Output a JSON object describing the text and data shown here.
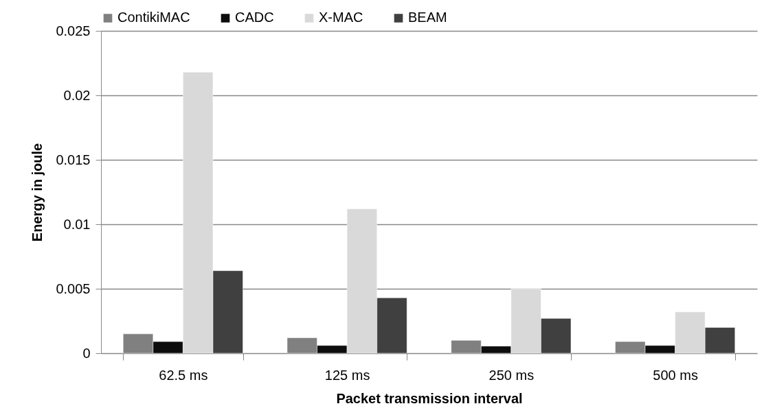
{
  "chart_data": {
    "type": "bar",
    "xlabel": "Packet transmission interval",
    "ylabel": "Energy in joule",
    "categories": [
      "62.5 ms",
      "125 ms",
      "250 ms",
      "500 ms"
    ],
    "series": [
      {
        "name": "ContikiMAC",
        "color": "#808080",
        "values": [
          0.0015,
          0.0012,
          0.001,
          0.0009
        ]
      },
      {
        "name": "CADC",
        "color": "#0d0d0d",
        "values": [
          0.0009,
          0.0006,
          0.00055,
          0.0006
        ]
      },
      {
        "name": "X-MAC",
        "color": "#d9d9d9",
        "values": [
          0.0218,
          0.0112,
          0.005,
          0.0032
        ]
      },
      {
        "name": "BEAM",
        "color": "#404040",
        "values": [
          0.0064,
          0.0043,
          0.0027,
          0.002
        ]
      }
    ],
    "ylim": [
      0,
      0.025
    ],
    "yticks": [
      0,
      0.005,
      0.01,
      0.015,
      0.02,
      0.025
    ],
    "grid": "y",
    "legend": "top"
  }
}
